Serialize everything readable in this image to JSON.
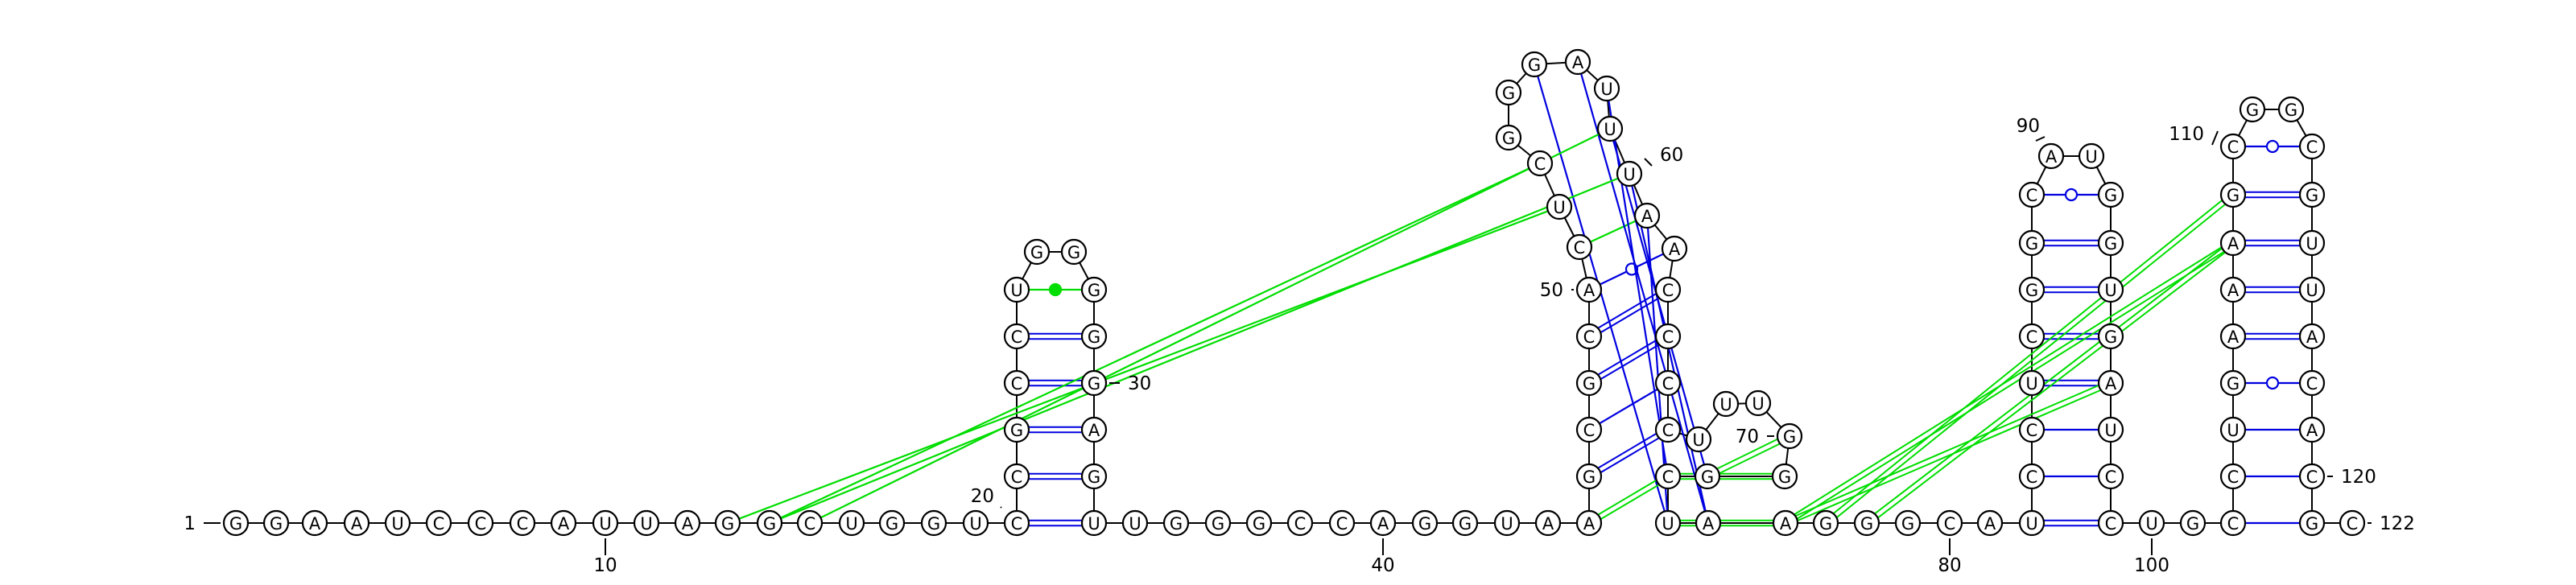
{
  "molecule": {
    "sequence": "GGAAUCCCAUUAGGCUGGUCCGCCUGGGGGAGUUGGGCCAGGUAAGCGCACUCGGGAUUUAACCCCUUUGGGCUAAGGGCAUCCUCGGCAUGGUGAUCCUGCCUGAAAGCGGCGUUACACGC",
    "pairs_note": "",
    "position_labels": [
      "1",
      "10",
      "20",
      "30",
      "40",
      "50",
      "60",
      "70",
      "80",
      "90",
      "100",
      "110",
      "120",
      "122"
    ]
  },
  "colors": {
    "backbone": "#000000",
    "canonical_pair": "#0000e0",
    "noncanonical_pair": "#00dd00",
    "pseudoknot": "#00dd00"
  }
}
